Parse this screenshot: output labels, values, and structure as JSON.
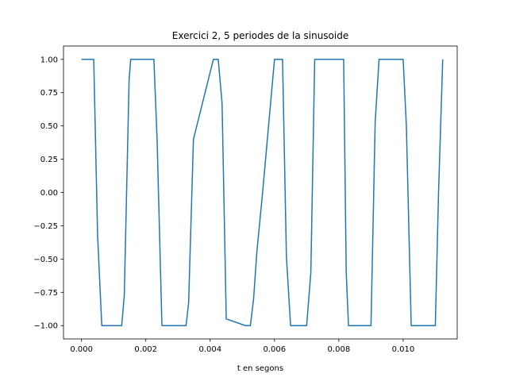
{
  "chart_data": {
    "type": "line",
    "title": "Exercici 2, 5 periodes de la sinusoide",
    "xlabel": "t en segons",
    "ylabel": "",
    "xlim": [
      -0.00056,
      0.01168
    ],
    "ylim": [
      -1.1,
      1.1
    ],
    "xticks": [
      0.0,
      0.002,
      0.004,
      0.006,
      0.008,
      0.01
    ],
    "xtick_labels": [
      "0.000",
      "0.002",
      "0.004",
      "0.006",
      "0.008",
      "0.010"
    ],
    "yticks": [
      1.0,
      0.75,
      0.5,
      0.25,
      0.0,
      -0.25,
      -0.5,
      -0.75,
      -1.0
    ],
    "ytick_labels": [
      "1.00",
      "0.75",
      "0.50",
      "0.25",
      "0.00",
      "−0.25",
      "−0.50",
      "−0.75",
      "−1.00"
    ],
    "grid": false,
    "series": [
      {
        "color": "#1f77b4",
        "x": [
          0.0,
          0.00038,
          0.0005,
          0.00063,
          0.00125,
          0.00133,
          0.00148,
          0.00153,
          0.00163,
          0.00225,
          0.00235,
          0.0025,
          0.00325,
          0.00333,
          0.00348,
          0.0041,
          0.00425,
          0.00437,
          0.0045,
          0.0051,
          0.00525,
          0.00535,
          0.00545,
          0.00563,
          0.006,
          0.00603,
          0.00623,
          0.00625,
          0.00637,
          0.0065,
          0.007,
          0.00713,
          0.00725,
          0.0074,
          0.008,
          0.00815,
          0.00823,
          0.0083,
          0.0084,
          0.009,
          0.00913,
          0.00925,
          0.00935,
          0.01,
          0.0101,
          0.01025,
          0.01037,
          0.011,
          0.0111,
          0.01123
        ],
        "y": [
          1.0,
          1.0,
          -0.32,
          -1.0,
          -1.0,
          -0.77,
          0.85,
          1.0,
          1.0,
          1.0,
          0.4,
          -1.0,
          -1.0,
          -0.83,
          0.4,
          1.0,
          1.0,
          0.67,
          -0.95,
          -1.0,
          -1.0,
          -0.8,
          -0.45,
          0.0,
          1.0,
          1.0,
          1.0,
          1.0,
          -0.48,
          -1.0,
          -1.0,
          -0.6,
          1.0,
          1.0,
          1.0,
          1.0,
          -0.6,
          -1.0,
          -1.0,
          -1.0,
          0.53,
          1.0,
          1.0,
          1.0,
          0.5,
          -1.0,
          -1.0,
          -1.0,
          0.0,
          1.0
        ]
      }
    ]
  }
}
